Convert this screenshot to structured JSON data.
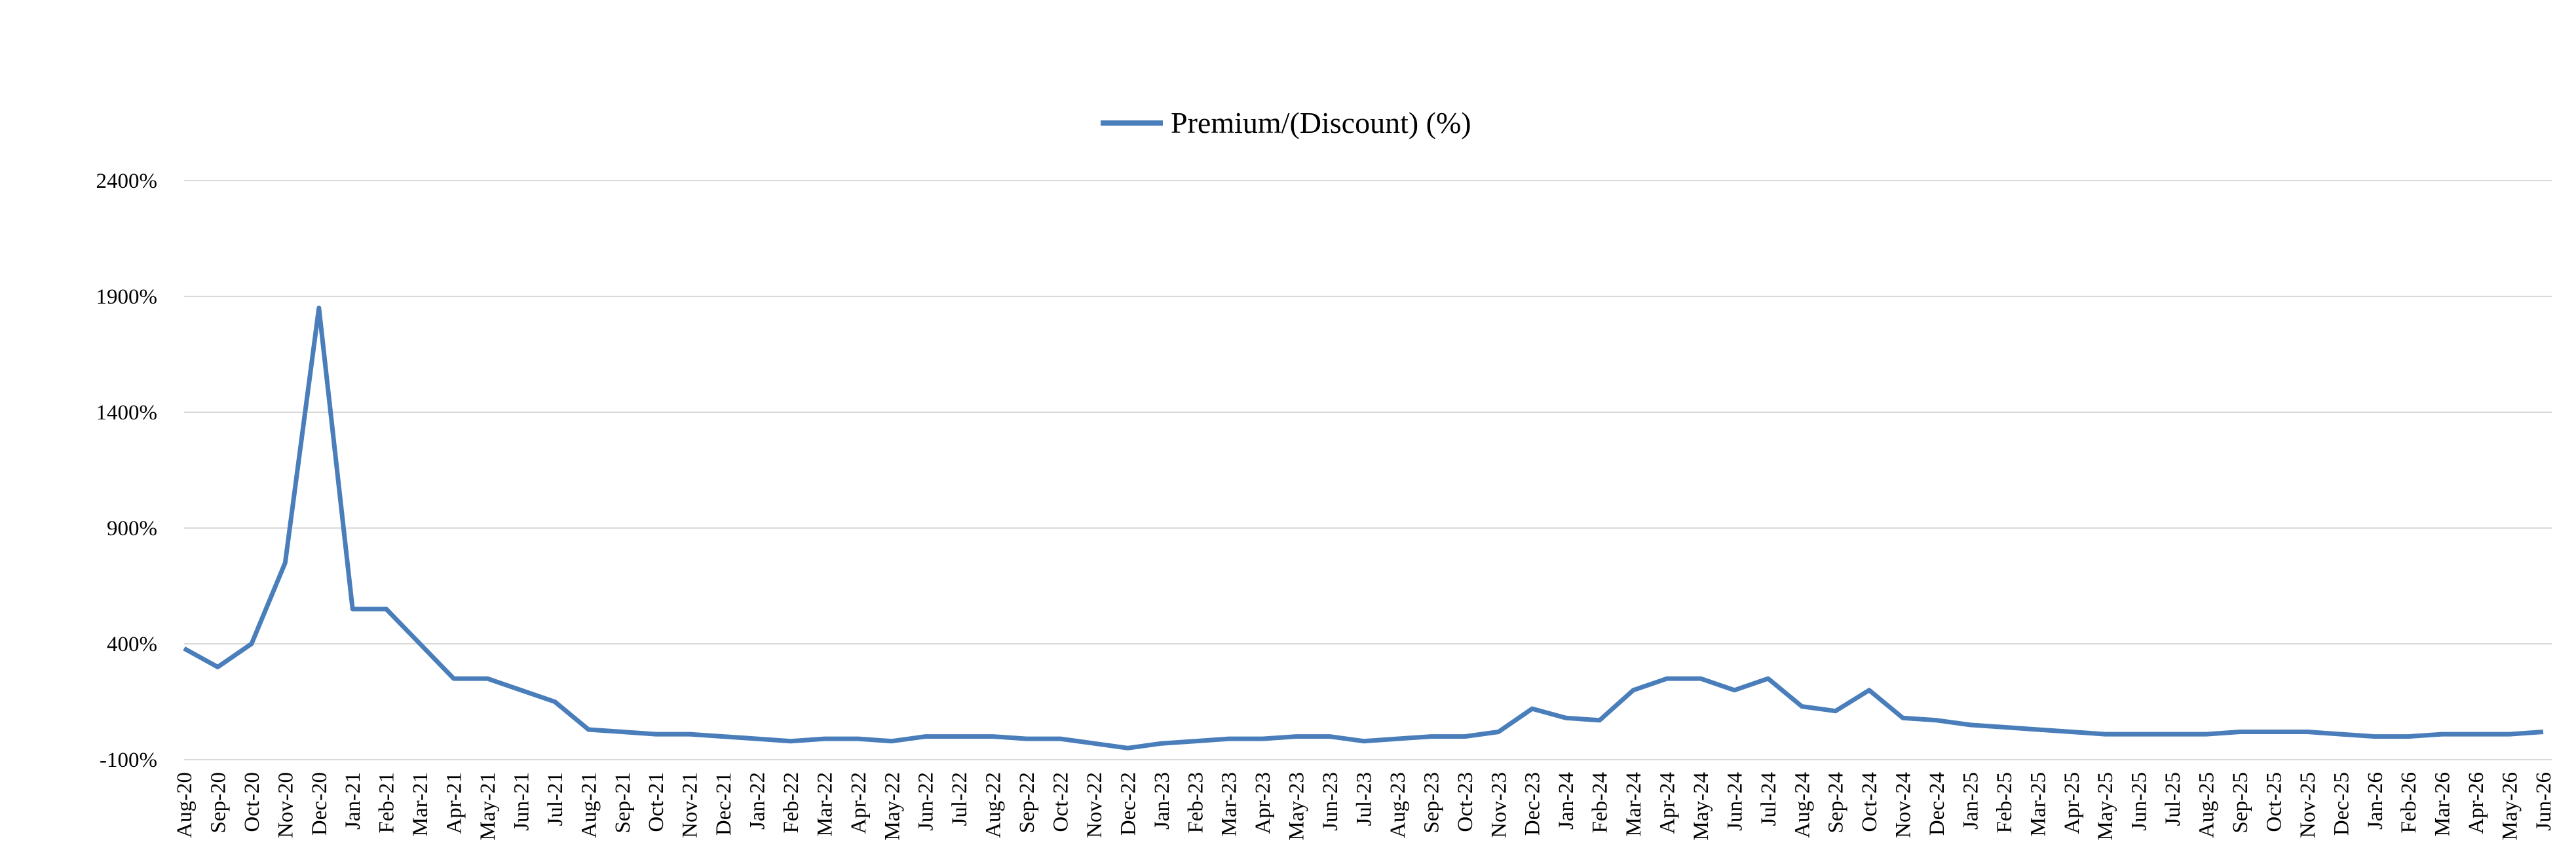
{
  "chart_data": {
    "type": "line",
    "categories": [
      "Aug-20",
      "Sep-20",
      "Oct-20",
      "Nov-20",
      "Dec-20",
      "Jan-21",
      "Feb-21",
      "Mar-21",
      "Apr-21",
      "May-21",
      "Jun-21",
      "Jul-21",
      "Aug-21",
      "Sep-21",
      "Oct-21",
      "Nov-21",
      "Dec-21",
      "Jan-22",
      "Feb-22",
      "Mar-22",
      "Apr-22",
      "May-22",
      "Jun-22",
      "Jul-22",
      "Aug-22",
      "Sep-22",
      "Oct-22",
      "Nov-22",
      "Dec-22",
      "Jan-23",
      "Feb-23",
      "Mar-23",
      "Apr-23",
      "May-23",
      "Jun-23",
      "Jul-23",
      "Aug-23",
      "Sep-23",
      "Oct-23",
      "Nov-23",
      "Dec-23",
      "Jan-24",
      "Feb-24",
      "Mar-24",
      "Apr-24",
      "May-24",
      "Jun-24",
      "Jul-24",
      "Aug-24",
      "Sep-24",
      "Oct-24",
      "Nov-24",
      "Dec-24",
      "Jan-25",
      "Feb-25",
      "Mar-25",
      "Apr-25",
      "May-25",
      "Jun-25",
      "Jul-25",
      "Aug-25",
      "Sep-25",
      "Oct-25",
      "Nov-25",
      "Dec-25",
      "Jan-26",
      "Feb-26",
      "Mar-26",
      "Apr-26",
      "May-26",
      "Jun-26"
    ],
    "series": [
      {
        "name": "Premium/(Discount) (%)",
        "color": "#4a7ebb",
        "values": [
          380,
          300,
          400,
          750,
          1850,
          550,
          550,
          400,
          250,
          250,
          200,
          150,
          30,
          20,
          10,
          10,
          0,
          -10,
          -20,
          -10,
          -10,
          -20,
          0,
          0,
          0,
          -10,
          -10,
          -30,
          -50,
          -30,
          -20,
          -10,
          -10,
          0,
          0,
          -20,
          -10,
          0,
          0,
          20,
          120,
          80,
          70,
          200,
          250,
          250,
          200,
          250,
          130,
          110,
          200,
          80,
          70,
          50,
          40,
          30,
          20,
          10,
          10,
          10,
          10,
          20,
          20,
          20,
          10,
          0,
          0,
          10,
          10,
          10,
          20
        ]
      }
    ],
    "ylim": [
      -100,
      2400
    ],
    "yticks": [
      {
        "value": -100,
        "label": "-100%"
      },
      {
        "value": 400,
        "label": "400%"
      },
      {
        "value": 900,
        "label": "900%"
      },
      {
        "value": 1400,
        "label": "1400%"
      },
      {
        "value": 1900,
        "label": "1900%"
      },
      {
        "value": 2400,
        "label": "2400%"
      }
    ],
    "grid": true,
    "legend": "top"
  }
}
